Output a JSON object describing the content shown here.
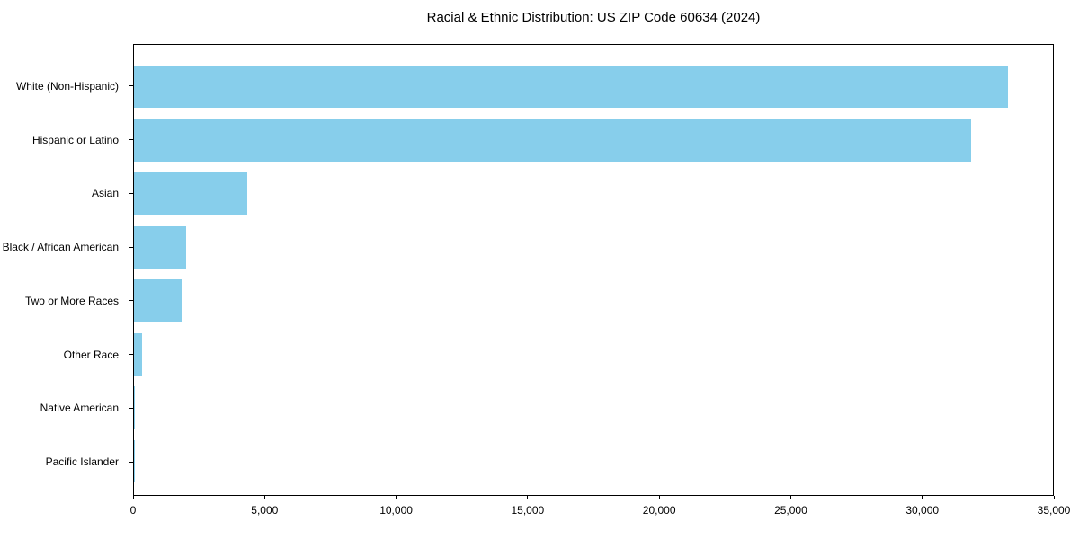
{
  "chart_data": {
    "type": "bar",
    "orientation": "horizontal",
    "title": "Racial & Ethnic Distribution: US ZIP Code 60634 (2024)",
    "categories": [
      "White (Non-Hispanic)",
      "Hispanic or Latino",
      "Asian",
      "Black / African American",
      "Two or More Races",
      "Other Race",
      "Native American",
      "Pacific Islander"
    ],
    "values": [
      33300,
      31900,
      4300,
      2000,
      1800,
      320,
      50,
      10
    ],
    "xlabel": "",
    "ylabel": "",
    "xlim": [
      0,
      35000
    ],
    "x_ticks": [
      0,
      5000,
      10000,
      15000,
      20000,
      25000,
      30000,
      35000
    ],
    "x_tick_labels": [
      "0",
      "5,000",
      "10,000",
      "15,000",
      "20,000",
      "25,000",
      "30,000",
      "35,000"
    ],
    "bar_color": "#87CEEB",
    "axis_color": "#000000",
    "background_color": "#ffffff",
    "grid": false,
    "legend": false
  }
}
